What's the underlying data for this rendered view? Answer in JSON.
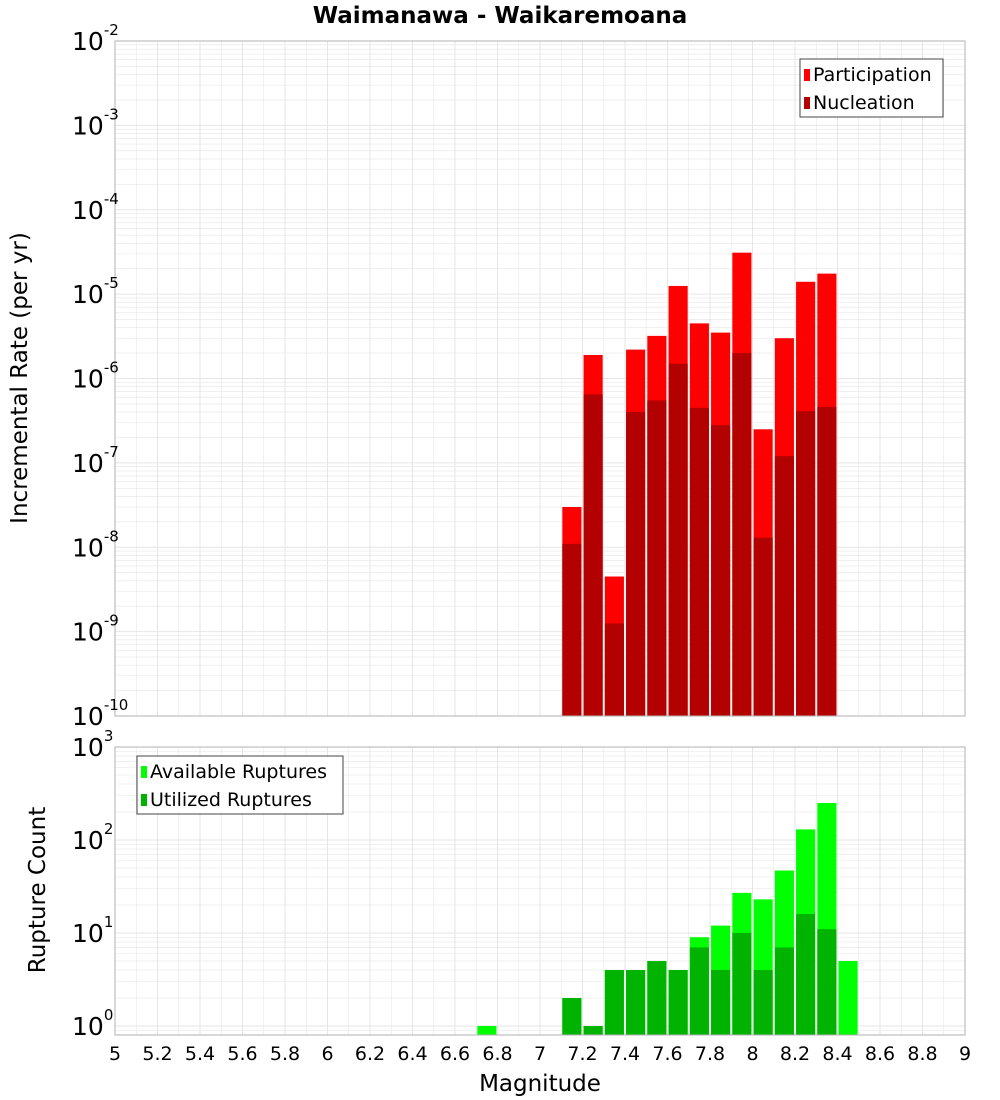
{
  "title": "Waimanawa - Waikaremoana",
  "colors": {
    "participation": "#ff0000",
    "nucleation": "#b30000",
    "available": "#00ff00",
    "utilized": "#00b300",
    "grid": "#e6e6e6",
    "frame": "#b0b0b0"
  },
  "chart_data": [
    {
      "type": "bar",
      "ylabel": "Incremental Rate (per yr)",
      "xlim": [
        5,
        9
      ],
      "ylim": [
        1e-10,
        0.01
      ],
      "yscale": "log",
      "ytick_labels": [
        "10-10",
        "10-9",
        "10-8",
        "10-7",
        "10-6",
        "10-5",
        "10-4",
        "10-3",
        "10-2"
      ],
      "legend_position": "top-right",
      "x": [
        7.15,
        7.25,
        7.35,
        7.45,
        7.55,
        7.65,
        7.75,
        7.85,
        7.95,
        8.05,
        8.15,
        8.25,
        8.35
      ],
      "series": [
        {
          "name": "Participation",
          "values": [
            3e-08,
            1.9e-06,
            4.5e-09,
            2.2e-06,
            3.2e-06,
            1.25e-05,
            4.5e-06,
            3.5e-06,
            3.1e-05,
            2.5e-07,
            3e-06,
            1.4e-05,
            1.75e-05
          ]
        },
        {
          "name": "Nucleation",
          "values": [
            1.1e-08,
            6.5e-07,
            1.25e-09,
            4e-07,
            5.5e-07,
            1.5e-06,
            4.5e-07,
            2.8e-07,
            2e-06,
            1.3e-08,
            1.2e-07,
            4.1e-07,
            4.6e-07
          ]
        }
      ]
    },
    {
      "type": "bar",
      "xlabel": "Magnitude",
      "ylabel": "Rupture Count",
      "xlim": [
        5,
        9
      ],
      "ylim": [
        0.8,
        1000
      ],
      "yscale": "log",
      "ytick_labels": [
        "100",
        "101",
        "102",
        "103"
      ],
      "xtick_labels": [
        "5",
        "5.2",
        "5.4",
        "5.6",
        "5.8",
        "6",
        "6.2",
        "6.4",
        "6.6",
        "6.8",
        "7",
        "7.2",
        "7.4",
        "7.6",
        "7.8",
        "8",
        "8.2",
        "8.4",
        "8.6",
        "8.8",
        "9"
      ],
      "legend_position": "top-left",
      "x": [
        6.75,
        7.15,
        7.25,
        7.35,
        7.45,
        7.55,
        7.65,
        7.75,
        7.85,
        7.95,
        8.05,
        8.15,
        8.25,
        8.35,
        8.45
      ],
      "series": [
        {
          "name": "Available Ruptures",
          "values": [
            1,
            2,
            1,
            4,
            4,
            5,
            4,
            9,
            12,
            27,
            23,
            47,
            130,
            250,
            5
          ]
        },
        {
          "name": "Utilized Ruptures",
          "values": [
            0,
            2,
            1,
            4,
            4,
            5,
            4,
            7,
            4,
            10,
            4,
            7,
            16,
            11,
            0
          ]
        }
      ]
    }
  ]
}
